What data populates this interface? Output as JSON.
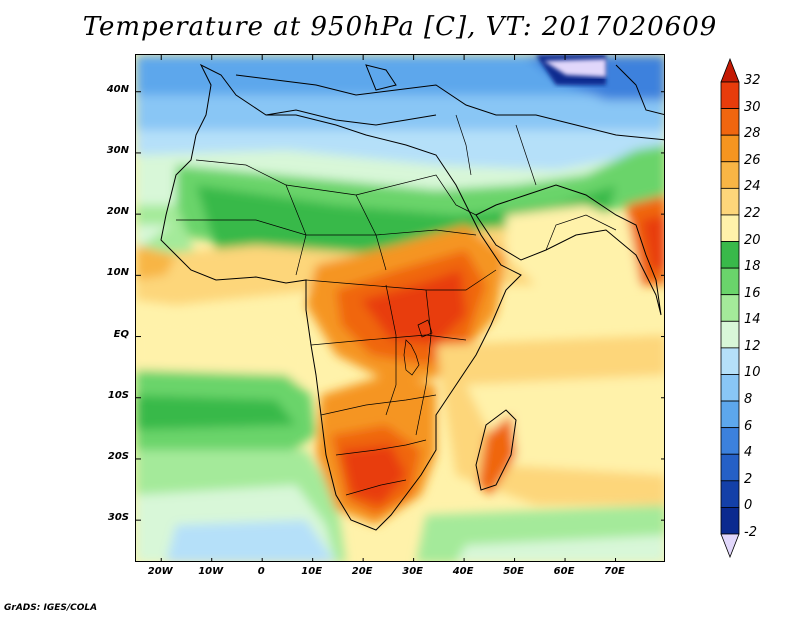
{
  "title": "Temperature at 950hPa [C], VT: 2017020609",
  "credit": "GrADS: IGES/COLA",
  "map": {
    "lon_range": [
      -25,
      80
    ],
    "lat_range": [
      -37,
      46
    ],
    "lat_ticks": [
      {
        "value": 40,
        "label": "40N"
      },
      {
        "value": 30,
        "label": "30N"
      },
      {
        "value": 20,
        "label": "20N"
      },
      {
        "value": 10,
        "label": "10N"
      },
      {
        "value": 0,
        "label": "EQ"
      },
      {
        "value": -10,
        "label": "10S"
      },
      {
        "value": -20,
        "label": "20S"
      },
      {
        "value": -30,
        "label": "30S"
      }
    ],
    "lon_ticks": [
      {
        "value": -20,
        "label": "20W"
      },
      {
        "value": -10,
        "label": "10W"
      },
      {
        "value": 0,
        "label": "0"
      },
      {
        "value": 10,
        "label": "10E"
      },
      {
        "value": 20,
        "label": "20E"
      },
      {
        "value": 30,
        "label": "30E"
      },
      {
        "value": 40,
        "label": "40E"
      },
      {
        "value": 50,
        "label": "50E"
      },
      {
        "value": 60,
        "label": "60E"
      },
      {
        "value": 70,
        "label": "70E"
      }
    ]
  },
  "colorbar": {
    "labels": [
      "32",
      "30",
      "28",
      "26",
      "24",
      "22",
      "20",
      "18",
      "16",
      "14",
      "12",
      "10",
      "8",
      "6",
      "4",
      "2",
      "0",
      "-2"
    ],
    "colors": [
      "#c41a04",
      "#e83c0c",
      "#f0660f",
      "#f59520",
      "#f8b545",
      "#fdd67a",
      "#fff2aa",
      "#39b94a",
      "#6ad46b",
      "#a4ea9a",
      "#d8f7d8",
      "#b5e0f9",
      "#89c6f5",
      "#5da7ec",
      "#3c81dd",
      "#2560c6",
      "#1440a8",
      "#0b2a8f",
      "#e1d7fb"
    ]
  }
}
